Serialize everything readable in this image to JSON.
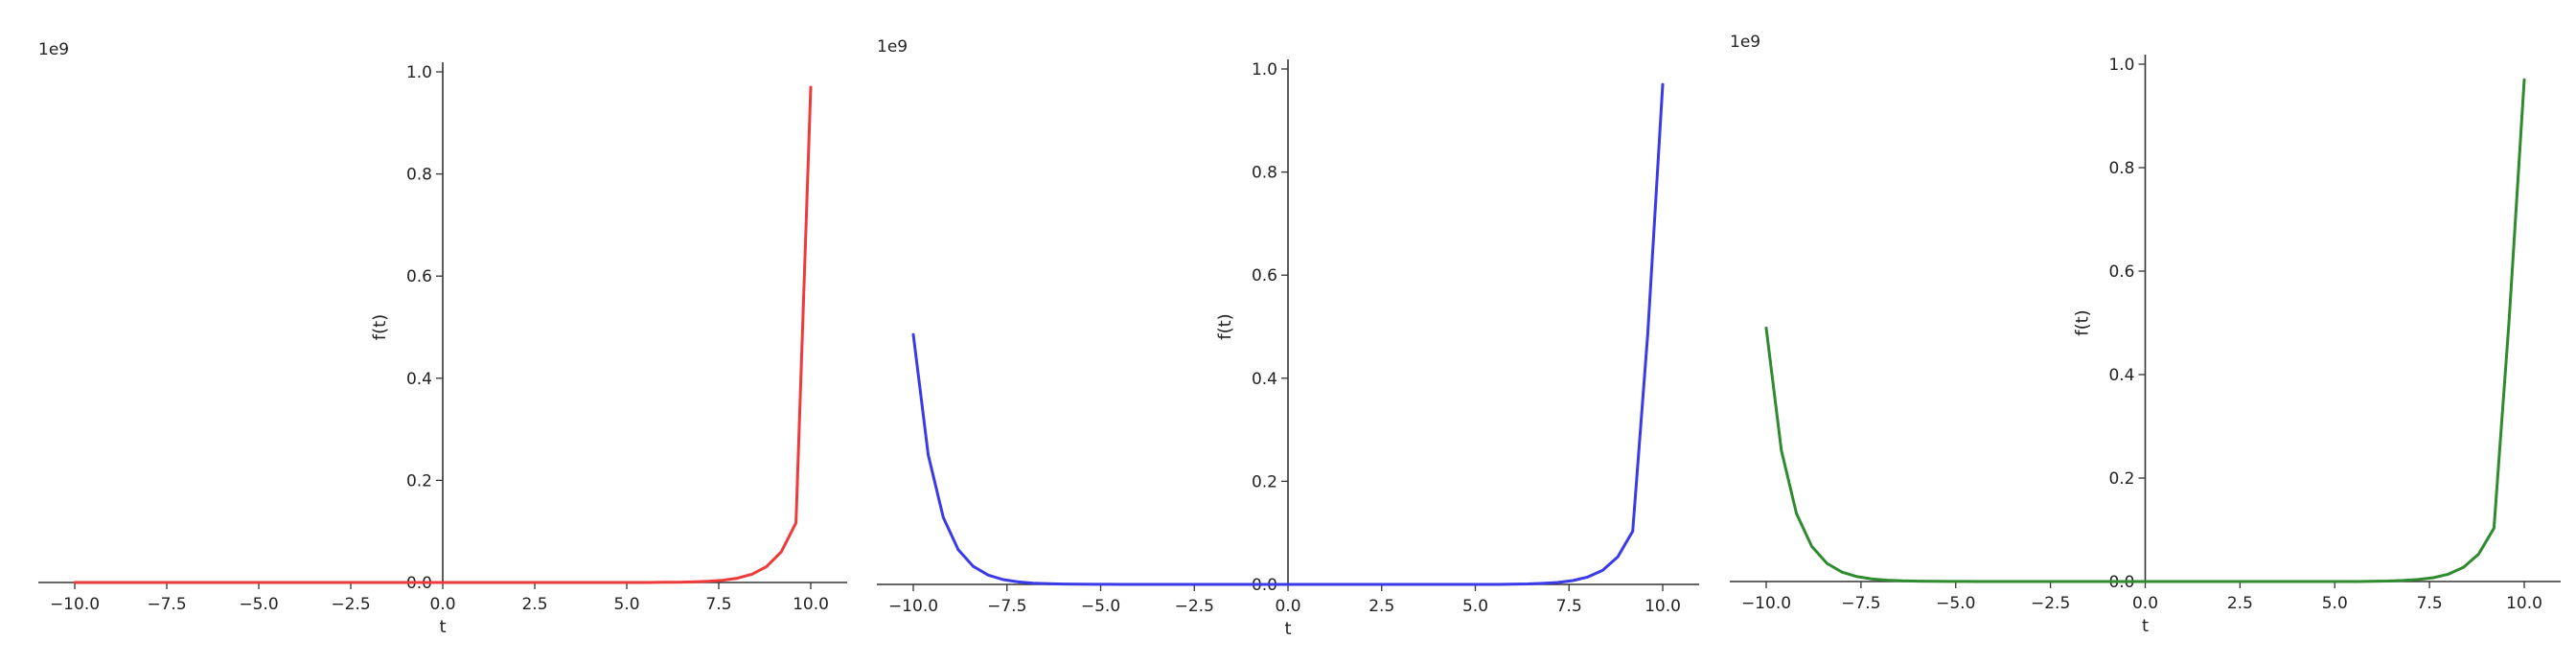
{
  "chart_data": [
    {
      "type": "line",
      "color": "#ee3a3a",
      "xlabel": "t",
      "ylabel": "f(t)",
      "offset_text": "1e9",
      "xlim": [
        -10.0,
        10.0
      ],
      "ylim": [
        0.0,
        1.0
      ],
      "grid": false,
      "spines": "centered",
      "xticks": [
        -10.0,
        -7.5,
        -5.0,
        -2.5,
        0.0,
        2.5,
        5.0,
        7.5,
        10.0
      ],
      "xtick_labels": [
        "−10.0",
        "−7.5",
        "−5.0",
        "−2.5",
        "0.0",
        "2.5",
        "5.0",
        "7.5",
        "10.0"
      ],
      "yticks": [
        0.0,
        0.2,
        0.4,
        0.6,
        0.8,
        1.0
      ],
      "ytick_labels": [
        "0.0",
        "0.2",
        "0.4",
        "0.6",
        "0.8",
        "1.0"
      ],
      "series": [
        {
          "x": [
            -10.0,
            -9.6,
            -9.2,
            -8.8,
            -8.4,
            -8.0,
            -7.6,
            -7.2,
            -6.8,
            -6.4,
            -6.0,
            -5.6,
            -5.2,
            -4.8,
            -4.4,
            -4.0,
            -3.6,
            -3.2,
            -2.8,
            -2.4,
            -2.0,
            -1.6,
            -1.2,
            -0.8,
            -0.4,
            0.0,
            0.4,
            0.8,
            1.2,
            1.6,
            2.0,
            2.4,
            2.8,
            3.2,
            3.6,
            4.0,
            4.4,
            4.8,
            5.2,
            5.6,
            6.0,
            6.4,
            6.8,
            7.2,
            7.6,
            8.0,
            8.4,
            8.8,
            9.2,
            9.6,
            10.0
          ],
          "y": [
            0.0,
            0.0,
            0.0,
            0.0,
            0.0,
            0.0,
            0.0,
            0.0,
            0.0,
            0.0,
            0.0,
            0.0,
            0.0,
            0.0,
            0.0,
            0.0,
            0.0,
            0.0,
            0.0,
            0.0,
            0.0,
            0.0,
            0.0,
            0.0,
            0.0,
            0.0,
            0.0,
            0.0,
            0.0,
            0.0,
            0.0,
            0.0,
            0.0,
            0.0,
            0.0,
            0.0,
            0.0,
            0.0,
            0.0,
            0.0,
            0.0003,
            0.0006,
            0.0012,
            0.0022,
            0.0043,
            0.0083,
            0.0161,
            0.0311,
            0.0603,
            0.1168,
            0.97
          ]
        }
      ]
    },
    {
      "type": "line",
      "color": "#3a3ae6",
      "xlabel": "t",
      "ylabel": "f(t)",
      "offset_text": "1e9",
      "xlim": [
        -10.0,
        10.0
      ],
      "ylim": [
        0.0,
        1.0
      ],
      "grid": false,
      "spines": "centered",
      "xticks": [
        -10.0,
        -7.5,
        -5.0,
        -2.5,
        0.0,
        2.5,
        5.0,
        7.5,
        10.0
      ],
      "xtick_labels": [
        "−10.0",
        "−7.5",
        "−5.0",
        "−2.5",
        "0.0",
        "2.5",
        "5.0",
        "7.5",
        "10.0"
      ],
      "yticks": [
        0.0,
        0.2,
        0.4,
        0.6,
        0.8,
        1.0
      ],
      "ytick_labels": [
        "0.0",
        "0.2",
        "0.4",
        "0.6",
        "0.8",
        "1.0"
      ],
      "series": [
        {
          "x": [
            -10.0,
            -9.6,
            -9.2,
            -8.8,
            -8.4,
            -8.0,
            -7.6,
            -7.2,
            -6.8,
            -6.4,
            -6.0,
            -5.6,
            -5.2,
            -4.8,
            -4.4,
            -4.0,
            -3.6,
            -3.2,
            -2.8,
            -2.4,
            -2.0,
            -1.6,
            -1.2,
            -0.8,
            -0.4,
            0.0,
            0.4,
            0.8,
            1.2,
            1.6,
            2.0,
            2.4,
            2.8,
            3.2,
            3.6,
            4.0,
            4.4,
            4.8,
            5.2,
            5.6,
            6.0,
            6.4,
            6.8,
            7.2,
            7.6,
            8.0,
            8.4,
            8.8,
            9.2,
            9.6,
            10.0
          ],
          "y": [
            0.485,
            0.2512,
            0.13,
            0.0673,
            0.0349,
            0.0181,
            0.0093,
            0.0048,
            0.0025,
            0.0013,
            0.0007,
            0.0003,
            0.0002,
            0.0001,
            0.0,
            0.0,
            0.0,
            0.0,
            0.0,
            0.0,
            0.0,
            0.0,
            0.0,
            0.0,
            0.0,
            0.0,
            0.0,
            0.0,
            0.0,
            0.0,
            0.0,
            0.0,
            0.0,
            0.0,
            0.0,
            0.0,
            0.0,
            0.0,
            0.0,
            0.0,
            0.0005,
            0.001,
            0.002,
            0.0038,
            0.0074,
            0.0143,
            0.0276,
            0.0533,
            0.1031,
            0.4862,
            0.97
          ]
        }
      ]
    },
    {
      "type": "line",
      "color": "#2e8b2e",
      "xlabel": "t",
      "ylabel": "f(t)",
      "offset_text": "1e9",
      "xlim": [
        -10.0,
        10.0
      ],
      "ylim": [
        0.0,
        1.0
      ],
      "grid": false,
      "spines": "centered",
      "xticks": [
        -10.0,
        -7.5,
        -5.0,
        -2.5,
        0.0,
        2.5,
        5.0,
        7.5,
        10.0
      ],
      "xtick_labels": [
        "−10.0",
        "−7.5",
        "−5.0",
        "−2.5",
        "0.0",
        "2.5",
        "5.0",
        "7.5",
        "10.0"
      ],
      "yticks": [
        0.0,
        0.2,
        0.4,
        0.6,
        0.8,
        1.0
      ],
      "ytick_labels": [
        "0.0",
        "0.2",
        "0.4",
        "0.6",
        "0.8",
        "1.0"
      ],
      "series": [
        {
          "x": [
            -10.0,
            -9.6,
            -9.2,
            -8.8,
            -8.4,
            -8.0,
            -7.6,
            -7.2,
            -6.8,
            -6.4,
            -6.0,
            -5.6,
            -5.2,
            -4.8,
            -4.4,
            -4.0,
            -3.6,
            -3.2,
            -2.8,
            -2.4,
            -2.0,
            -1.6,
            -1.2,
            -0.8,
            -0.4,
            0.0,
            0.4,
            0.8,
            1.2,
            1.6,
            2.0,
            2.4,
            2.8,
            3.2,
            3.6,
            4.0,
            4.4,
            4.8,
            5.2,
            5.6,
            6.0,
            6.4,
            6.8,
            7.2,
            7.6,
            8.0,
            8.4,
            8.8,
            9.2,
            9.6,
            10.0
          ],
          "y": [
            0.49,
            0.2537,
            0.1313,
            0.068,
            0.0352,
            0.0182,
            0.0094,
            0.0049,
            0.0025,
            0.0013,
            0.0007,
            0.0003,
            0.0002,
            0.0001,
            0.0,
            0.0,
            0.0,
            0.0,
            0.0,
            0.0,
            0.0,
            0.0,
            0.0,
            0.0,
            0.0,
            0.0,
            0.0,
            0.0,
            0.0,
            0.0,
            0.0,
            0.0,
            0.0,
            0.0,
            0.0,
            0.0,
            0.0,
            0.0,
            0.0,
            0.0,
            0.0005,
            0.001,
            0.002,
            0.0038,
            0.0074,
            0.0143,
            0.0276,
            0.0533,
            0.1031,
            0.5049,
            0.97
          ]
        }
      ]
    }
  ]
}
